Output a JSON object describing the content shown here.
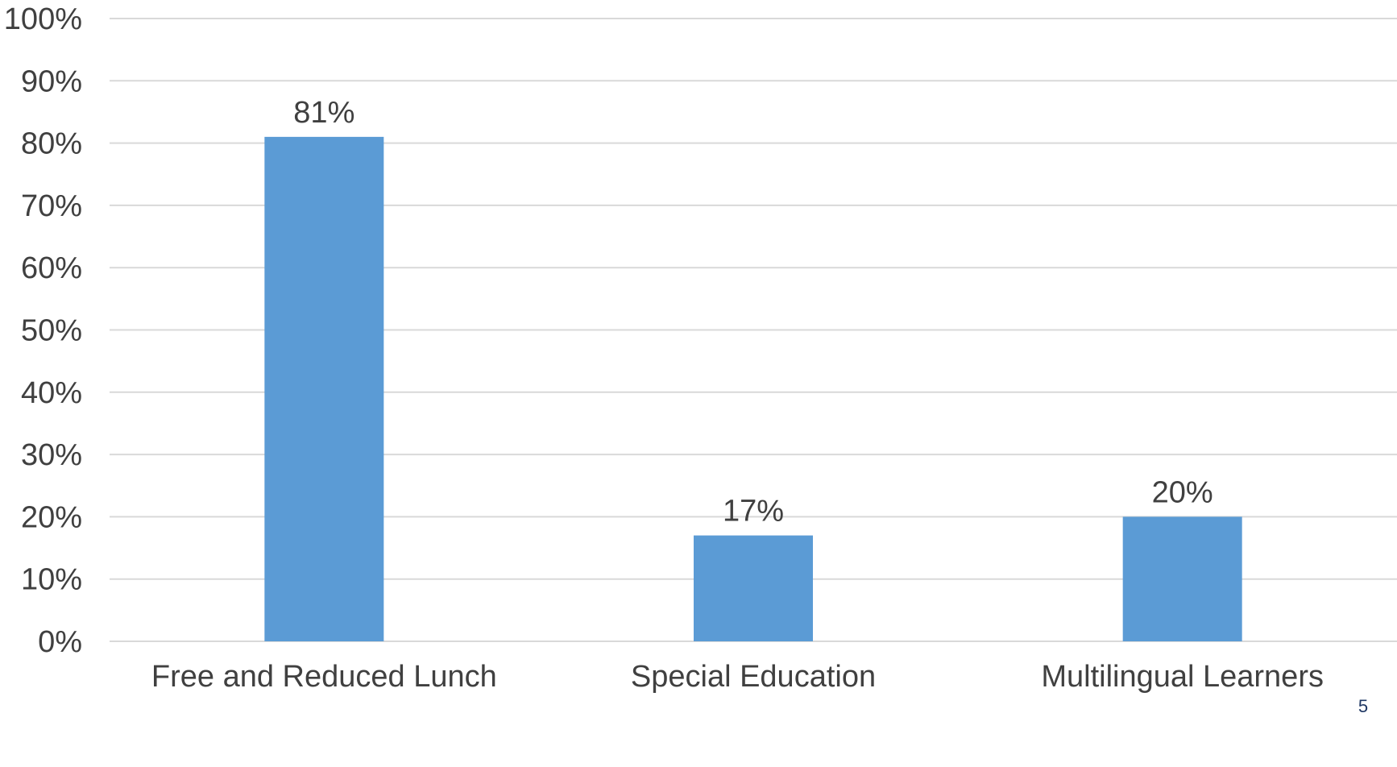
{
  "chart_data": {
    "type": "bar",
    "title": "",
    "xlabel": "",
    "ylabel": "",
    "categories": [
      "Free and Reduced Lunch",
      "Special Education",
      "Multilingual Learners"
    ],
    "values": [
      81,
      17,
      20
    ],
    "value_labels": [
      "81%",
      "17%",
      "20%"
    ],
    "ylim": [
      0,
      100
    ],
    "yticks": [
      0,
      10,
      20,
      30,
      40,
      50,
      60,
      70,
      80,
      90,
      100
    ],
    "ytick_labels": [
      "0%",
      "10%",
      "20%",
      "30%",
      "40%",
      "50%",
      "60%",
      "70%",
      "80%",
      "90%",
      "100%"
    ],
    "grid": true,
    "legend": "none",
    "bar_color": "#5b9bd5",
    "grid_color": "#d9d9d9",
    "text_color": "#404040"
  },
  "page_number": "5"
}
